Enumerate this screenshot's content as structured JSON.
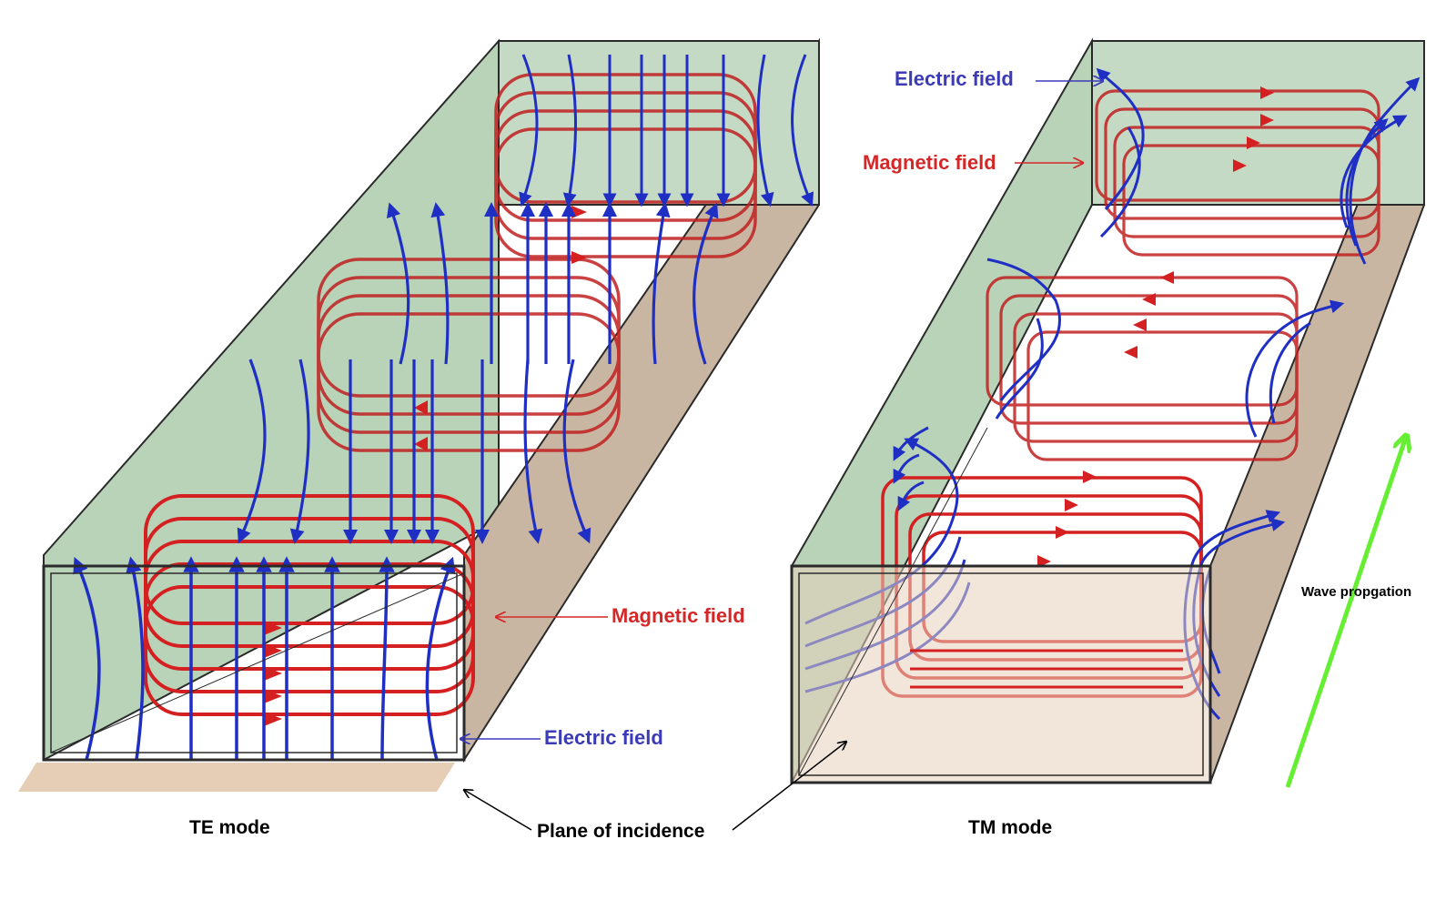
{
  "labels": {
    "te_mode": "TE mode",
    "tm_mode": "TM mode",
    "plane_of_incidence": "Plane of incidence",
    "te_magnetic_field": "Magnetic field",
    "te_electric_field": "Electric field",
    "tm_electric_field": "Electric field",
    "tm_magnetic_field": "Magnetic field",
    "wave_propagation": "Wave propgation"
  },
  "colors": {
    "electric": "#1f2fc4",
    "magnetic": "#d42020",
    "wall_green": "#b9d3b9",
    "wall_tan": "#e8d2bd",
    "floor": "#c9b6a2",
    "frame": "#2a2a2a",
    "wave_arrow": "#66ee33",
    "label_blue": "#3b3bb8",
    "label_red": "#d42828"
  }
}
